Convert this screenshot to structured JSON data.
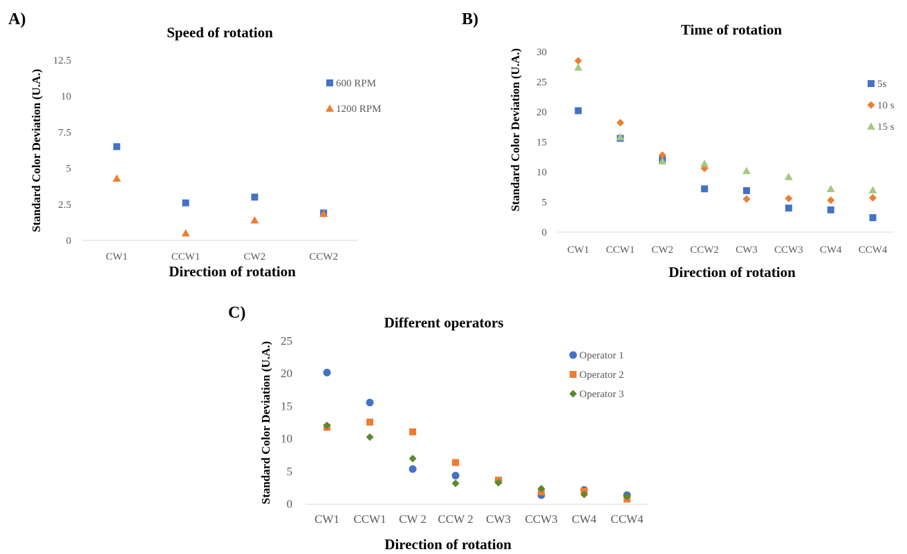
{
  "chart_data": [
    {
      "panel": "A)",
      "type": "scatter",
      "title": "Speed of rotation",
      "xlabel": "Direction of rotation",
      "ylabel": "Standard Color Deviation (U.A.)",
      "categories": [
        "CW1",
        "CCW1",
        "CW2",
        "CCW2"
      ],
      "ylim": [
        0,
        12.5
      ],
      "yticks": [
        "0",
        "2.5",
        "5",
        "7.5",
        "10",
        "12.5"
      ],
      "grid": false,
      "legend_position": "top-right",
      "series": [
        {
          "name": "600 RPM",
          "marker": "square",
          "color": "#4472c4",
          "values": [
            6.5,
            2.6,
            3.0,
            1.9
          ]
        },
        {
          "name": "1200 RPM",
          "marker": "triangle",
          "color": "#ed7d31",
          "values": [
            4.3,
            0.5,
            1.4,
            1.85
          ]
        }
      ]
    },
    {
      "panel": "B)",
      "type": "scatter",
      "title": "Time of rotation",
      "xlabel": "Direction of rotation",
      "ylabel": "Standard Color Deviation (U.A.)",
      "categories": [
        "CW1",
        "CCW1",
        "CW2",
        "CCW2",
        "CW3",
        "CCW3",
        "CW4",
        "CCW4"
      ],
      "ylim": [
        0,
        30
      ],
      "yticks": [
        "0",
        "5",
        "10",
        "15",
        "20",
        "25",
        "30"
      ],
      "grid": false,
      "legend_position": "top-right",
      "series": [
        {
          "name": "5s",
          "marker": "square",
          "color": "#4472c4",
          "values": [
            20.2,
            15.6,
            12.1,
            7.2,
            6.9,
            4.0,
            3.7,
            2.4
          ]
        },
        {
          "name": "10 s",
          "marker": "diamond",
          "color": "#ed7d31",
          "values": [
            28.5,
            18.2,
            12.8,
            10.6,
            5.5,
            5.6,
            5.3,
            5.7
          ]
        },
        {
          "name": "15 s",
          "marker": "triangle",
          "color": "#a5c882",
          "values": [
            27.4,
            15.8,
            11.8,
            11.4,
            10.2,
            9.2,
            7.2,
            7.0
          ]
        }
      ]
    },
    {
      "panel": "C)",
      "type": "scatter",
      "title": "Different operators",
      "xlabel": "Direction of rotation",
      "ylabel": "Standard Color Deviation (U.A.)",
      "categories": [
        "CW1",
        "CCW1",
        "CW 2",
        "CCW 2",
        "CW3",
        "CCW3",
        "CW4",
        "CCW4"
      ],
      "ylim": [
        0,
        25
      ],
      "yticks": [
        "0",
        "5",
        "10",
        "15",
        "20",
        "25"
      ],
      "grid": false,
      "legend_position": "top-right",
      "series": [
        {
          "name": "Operator 1",
          "marker": "circle",
          "color": "#4472c4",
          "values": [
            20.2,
            15.6,
            5.4,
            4.4,
            3.6,
            1.4,
            2.2,
            1.4
          ]
        },
        {
          "name": "Operator 2",
          "marker": "square",
          "color": "#ed7d31",
          "values": [
            11.8,
            12.6,
            11.1,
            6.4,
            3.7,
            1.9,
            2.0,
            0.8
          ]
        },
        {
          "name": "Operator 3",
          "marker": "diamond",
          "color": "#5a8a2e",
          "values": [
            12.1,
            10.3,
            7.0,
            3.2,
            3.3,
            2.4,
            1.5,
            1.2
          ]
        }
      ]
    }
  ]
}
